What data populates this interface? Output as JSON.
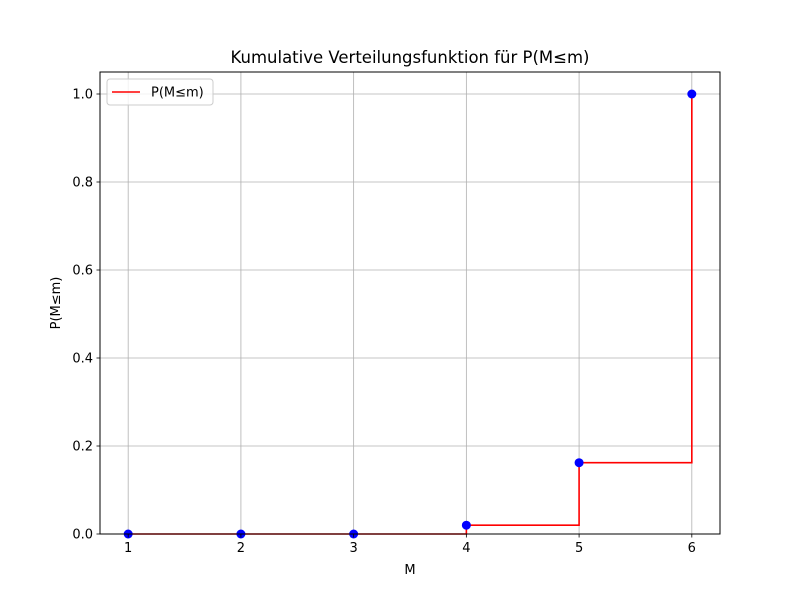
{
  "chart_data": {
    "type": "line",
    "title": "Kumulative Verteilungsfunktion für P(M≤m)",
    "xlabel": "M",
    "ylabel": "P(M≤m)",
    "xlim": [
      0.75,
      6.25
    ],
    "ylim": [
      0.0,
      1.05
    ],
    "x_ticks": [
      1,
      2,
      3,
      4,
      5,
      6
    ],
    "x_tick_labels": [
      "1",
      "2",
      "3",
      "4",
      "5",
      "6"
    ],
    "y_ticks": [
      0.0,
      0.2,
      0.4,
      0.6,
      0.8,
      1.0
    ],
    "y_tick_labels": [
      "0.0",
      "0.2",
      "0.4",
      "0.6",
      "0.8",
      "1.0"
    ],
    "grid": true,
    "legend_position": "upper left",
    "series": [
      {
        "name": "P(M≤m)",
        "kind": "step-post",
        "color": "#ff0000",
        "x": [
          1,
          2,
          3,
          4,
          5,
          6
        ],
        "y": [
          0.0,
          0.0,
          0.0,
          0.02,
          0.162,
          1.0
        ]
      },
      {
        "kind": "scatter",
        "color": "#0000ff",
        "x": [
          1,
          2,
          3,
          4,
          5,
          6
        ],
        "y": [
          0.0,
          0.0,
          0.0,
          0.02,
          0.162,
          1.0
        ]
      }
    ]
  }
}
